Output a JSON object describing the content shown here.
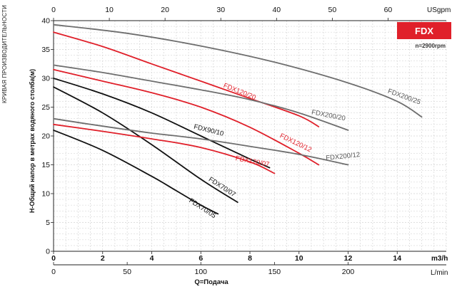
{
  "page_side_title": "КРИВАЯ ПРОИЗВОДИТЕЛЬНОСТИ",
  "badge": {
    "label": "FDX",
    "color": "#e0202a"
  },
  "speed_note": "n=2900rpm",
  "chart_data": {
    "type": "line",
    "title": "",
    "ylabel": "H-Общий напор в метрах водяного столба(м)",
    "xlabel": "Q=Подача",
    "x_unit_primary": "m3/h",
    "x_unit_lmin": "L/min",
    "x_unit_usgpm": "USgpm",
    "xlim": [
      0,
      16
    ],
    "ylim": [
      0,
      40
    ],
    "grid": true,
    "x_ticks_m3h": [
      "0",
      "2",
      "4",
      "6",
      "8",
      "10",
      "12",
      "14"
    ],
    "x_tick_values_m3h": [
      0,
      2,
      4,
      6,
      8,
      10,
      12,
      14
    ],
    "x_ticks_lmin": [
      "0",
      "50",
      "100",
      "150",
      "200"
    ],
    "x_tick_values_lmin": [
      0,
      50,
      100,
      150,
      200
    ],
    "x_ticks_usgpm": [
      "0",
      "10",
      "20",
      "30",
      "40",
      "50",
      "60"
    ],
    "x_tick_values_usgpm": [
      0,
      10,
      20,
      30,
      40,
      50,
      60
    ],
    "y_ticks": [
      "0",
      "5",
      "10",
      "15",
      "20",
      "25",
      "30",
      "35",
      "40"
    ],
    "y_tick_values": [
      0,
      5,
      10,
      15,
      20,
      25,
      30,
      35,
      40
    ],
    "series": [
      {
        "name": "FDX70/05",
        "color": "#111111",
        "points": [
          [
            0,
            21
          ],
          [
            2,
            17.5
          ],
          [
            4,
            13
          ],
          [
            5,
            10.5
          ],
          [
            6,
            8
          ],
          [
            6.7,
            6.5
          ]
        ]
      },
      {
        "name": "FDX70/07",
        "color": "#111111",
        "points": [
          [
            0,
            28.5
          ],
          [
            2,
            24
          ],
          [
            4,
            18.5
          ],
          [
            6,
            12.5
          ],
          [
            7.5,
            8.5
          ]
        ]
      },
      {
        "name": "FDX90/10",
        "color": "#111111",
        "points": [
          [
            0,
            30
          ],
          [
            2,
            27.3
          ],
          [
            4,
            24
          ],
          [
            6,
            20
          ],
          [
            8,
            16
          ],
          [
            8.8,
            14.5
          ]
        ]
      },
      {
        "name": "FDX120/07",
        "color": "#e0202a",
        "points": [
          [
            0,
            22
          ],
          [
            2,
            20.8
          ],
          [
            4,
            19.5
          ],
          [
            6,
            18
          ],
          [
            8,
            15.5
          ],
          [
            9,
            13.5
          ]
        ]
      },
      {
        "name": "FDX120/12",
        "color": "#e0202a",
        "points": [
          [
            0,
            31.5
          ],
          [
            2,
            29.5
          ],
          [
            4,
            27.5
          ],
          [
            6,
            25
          ],
          [
            8,
            21.5
          ],
          [
            10,
            17
          ],
          [
            10.8,
            15
          ]
        ]
      },
      {
        "name": "FDX120/20",
        "color": "#e0202a",
        "points": [
          [
            0,
            38
          ],
          [
            2,
            35.5
          ],
          [
            4,
            32.5
          ],
          [
            6,
            29.5
          ],
          [
            8,
            26.5
          ],
          [
            10,
            23.5
          ],
          [
            10.8,
            21.6
          ]
        ]
      },
      {
        "name": "FDX200/12",
        "color": "#6e6e6e",
        "points": [
          [
            0,
            23
          ],
          [
            2,
            21.7
          ],
          [
            4,
            20.5
          ],
          [
            6,
            19.5
          ],
          [
            8,
            18.2
          ],
          [
            10,
            16.8
          ],
          [
            12,
            15
          ]
        ]
      },
      {
        "name": "FDX200/20",
        "color": "#6e6e6e",
        "points": [
          [
            0,
            32.3
          ],
          [
            2,
            31
          ],
          [
            4,
            29.5
          ],
          [
            6,
            28
          ],
          [
            8,
            26.3
          ],
          [
            10,
            24
          ],
          [
            12,
            21
          ]
        ]
      },
      {
        "name": "FDX200/25",
        "color": "#6e6e6e",
        "points": [
          [
            0,
            39.3
          ],
          [
            3,
            37.8
          ],
          [
            6,
            35.6
          ],
          [
            9,
            32.8
          ],
          [
            12,
            29.2
          ],
          [
            14,
            26
          ],
          [
            15,
            23.3
          ]
        ]
      }
    ],
    "labels": [
      {
        "text": "FDX70/05",
        "x": 5.5,
        "y": 8.6,
        "angle": 33,
        "color": "#111111"
      },
      {
        "text": "FDX70/07",
        "x": 6.3,
        "y": 12.3,
        "angle": 33,
        "color": "#111111"
      },
      {
        "text": "FDX90/10",
        "x": 5.7,
        "y": 21.3,
        "angle": 14,
        "color": "#111111"
      },
      {
        "text": "FDX120/07",
        "x": 7.4,
        "y": 15.8,
        "angle": 11,
        "color": "#e0202a"
      },
      {
        "text": "FDX120/12",
        "x": 9.2,
        "y": 19.8,
        "angle": 26,
        "color": "#e0202a"
      },
      {
        "text": "FDX120/20",
        "x": 6.9,
        "y": 28.5,
        "angle": 22,
        "color": "#e0202a"
      },
      {
        "text": "FDX200/12",
        "x": 11.1,
        "y": 15.8,
        "angle": -6,
        "color": "#555555"
      },
      {
        "text": "FDX200/20",
        "x": 10.5,
        "y": 23.8,
        "angle": 11,
        "color": "#555555"
      },
      {
        "text": "FDX200/25",
        "x": 13.6,
        "y": 27.5,
        "angle": 20,
        "color": "#555555"
      }
    ]
  }
}
